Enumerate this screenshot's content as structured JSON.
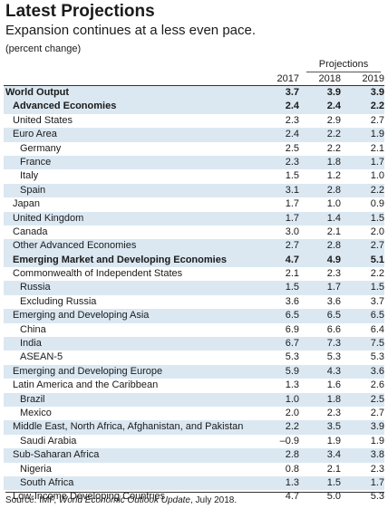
{
  "title": "Latest Projections",
  "subtitle": "Expansion continues at a less even pace.",
  "unit": "(percent change)",
  "projections_label": "Projections",
  "years": [
    "2017",
    "2018",
    "2019"
  ],
  "rows": [
    {
      "label": "World Output",
      "v": [
        "3.7",
        "3.9",
        "3.9"
      ]
    },
    {
      "label": "Advanced Economies",
      "v": [
        "2.4",
        "2.4",
        "2.2"
      ]
    },
    {
      "label": "United States",
      "v": [
        "2.3",
        "2.9",
        "2.7"
      ]
    },
    {
      "label": "Euro Area",
      "v": [
        "2.4",
        "2.2",
        "1.9"
      ]
    },
    {
      "label": "Germany",
      "v": [
        "2.5",
        "2.2",
        "2.1"
      ]
    },
    {
      "label": "France",
      "v": [
        "2.3",
        "1.8",
        "1.7"
      ]
    },
    {
      "label": "Italy",
      "v": [
        "1.5",
        "1.2",
        "1.0"
      ]
    },
    {
      "label": "Spain",
      "v": [
        "3.1",
        "2.8",
        "2.2"
      ]
    },
    {
      "label": "Japan",
      "v": [
        "1.7",
        "1.0",
        "0.9"
      ]
    },
    {
      "label": "United Kingdom",
      "v": [
        "1.7",
        "1.4",
        "1.5"
      ]
    },
    {
      "label": "Canada",
      "v": [
        "3.0",
        "2.1",
        "2.0"
      ]
    },
    {
      "label": "Other Advanced Economies",
      "v": [
        "2.7",
        "2.8",
        "2.7"
      ]
    },
    {
      "label": "Emerging Market and Developing Economies",
      "v": [
        "4.7",
        "4.9",
        "5.1"
      ]
    },
    {
      "label": "Commonwealth of Independent States",
      "v": [
        "2.1",
        "2.3",
        "2.2"
      ]
    },
    {
      "label": "Russia",
      "v": [
        "1.5",
        "1.7",
        "1.5"
      ]
    },
    {
      "label": "Excluding Russia",
      "v": [
        "3.6",
        "3.6",
        "3.7"
      ]
    },
    {
      "label": "Emerging and Developing Asia",
      "v": [
        "6.5",
        "6.5",
        "6.5"
      ]
    },
    {
      "label": "China",
      "v": [
        "6.9",
        "6.6",
        "6.4"
      ]
    },
    {
      "label": "India",
      "v": [
        "6.7",
        "7.3",
        "7.5"
      ]
    },
    {
      "label": "ASEAN-5",
      "v": [
        "5.3",
        "5.3",
        "5.3"
      ]
    },
    {
      "label": "Emerging and Developing Europe",
      "v": [
        "5.9",
        "4.3",
        "3.6"
      ]
    },
    {
      "label": "Latin America and the Caribbean",
      "v": [
        "1.3",
        "1.6",
        "2.6"
      ]
    },
    {
      "label": "Brazil",
      "v": [
        "1.0",
        "1.8",
        "2.5"
      ]
    },
    {
      "label": "Mexico",
      "v": [
        "2.0",
        "2.3",
        "2.7"
      ]
    },
    {
      "label": "Middle East, North Africa, Afghanistan, and Pakistan",
      "v": [
        "2.2",
        "3.5",
        "3.9"
      ]
    },
    {
      "label": "Saudi Arabia",
      "v": [
        "–0.9",
        "1.9",
        "1.9"
      ]
    },
    {
      "label": "Sub-Saharan Africa",
      "v": [
        "2.8",
        "3.4",
        "3.8"
      ]
    },
    {
      "label": "Nigeria",
      "v": [
        "0.8",
        "2.1",
        "2.3"
      ]
    },
    {
      "label": "South Africa",
      "v": [
        "1.3",
        "1.5",
        "1.7"
      ]
    },
    {
      "label": "Low-Income Developing Countries",
      "v": [
        "4.7",
        "5.0",
        "5.3"
      ]
    }
  ],
  "source": {
    "prefix": "Source: IMF, ",
    "publication": "World Economic Outlook Update",
    "suffix": ", July 2018."
  }
}
